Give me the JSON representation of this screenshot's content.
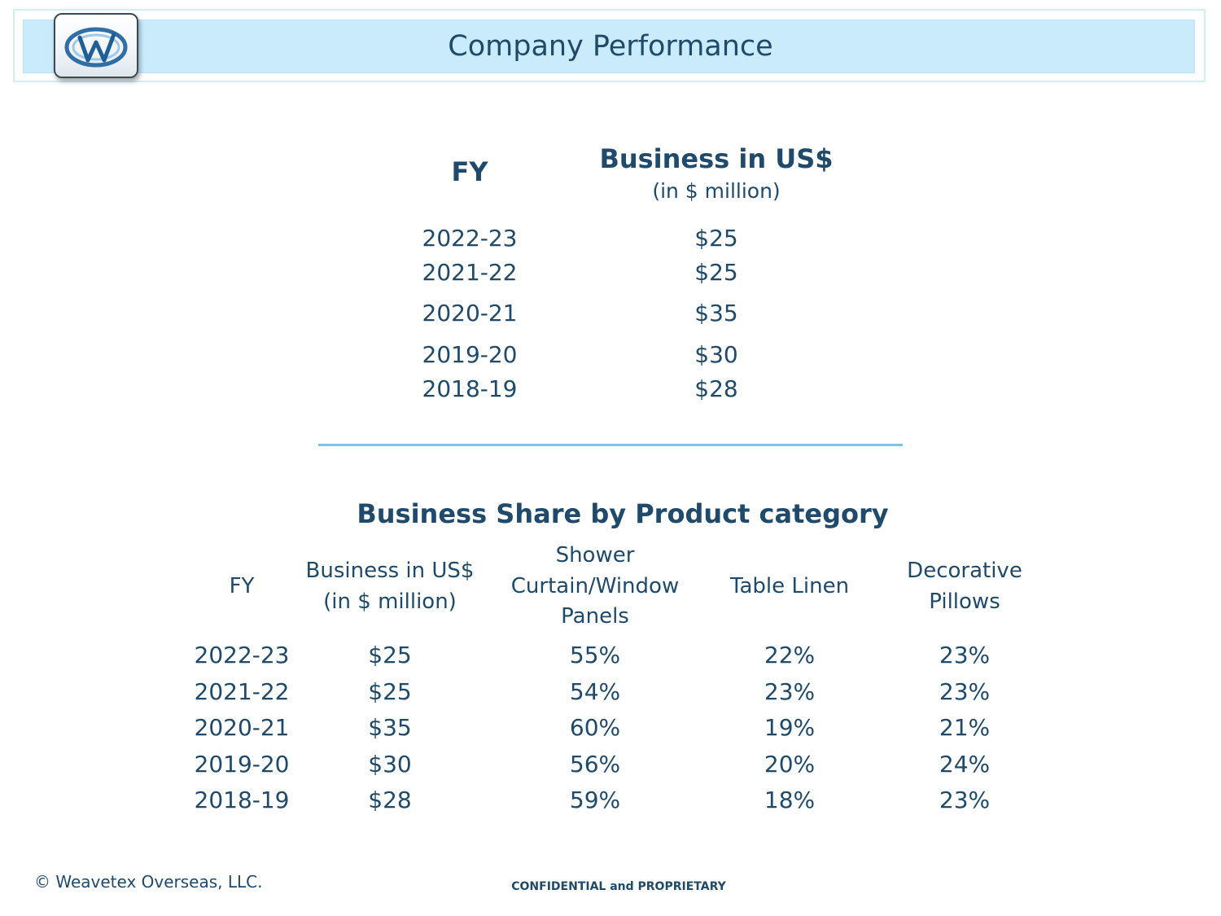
{
  "header": {
    "title": "Company Performance",
    "logo_icon": "weavetex-w-logo-icon"
  },
  "summary_table": {
    "fy_header": "FY",
    "business_header": "Business in US$",
    "business_subheader": "(in $ million)",
    "rows": [
      {
        "fy": "2022-23",
        "value": "$25"
      },
      {
        "fy": "2021-22",
        "value": "$25"
      },
      {
        "fy": "2020-21",
        "value": "$35"
      },
      {
        "fy": "2019-20",
        "value": "$30"
      },
      {
        "fy": "2018-19",
        "value": "$28"
      }
    ]
  },
  "category_table": {
    "title": "Business Share by Product category",
    "headers": {
      "fy": "FY",
      "business_line1": "Business in US$",
      "business_line2": "(in $ million)",
      "shower_line1": "Shower",
      "shower_line2": "Curtain/Window",
      "shower_line3": "Panels",
      "table_linen": "Table Linen",
      "pillows_line1": "Decorative",
      "pillows_line2": "Pillows"
    },
    "rows": [
      {
        "fy": "2022-23",
        "business": "$25",
        "shower": "55%",
        "linen": "22%",
        "pillows": "23%"
      },
      {
        "fy": "2021-22",
        "business": "$25",
        "shower": "54%",
        "linen": "23%",
        "pillows": "23%"
      },
      {
        "fy": "2020-21",
        "business": "$35",
        "shower": "60%",
        "linen": "19%",
        "pillows": "21%"
      },
      {
        "fy": "2019-20",
        "business": "$30",
        "shower": "56%",
        "linen": "20%",
        "pillows": "24%"
      },
      {
        "fy": "2018-19",
        "business": "$28",
        "shower": "59%",
        "linen": "18%",
        "pillows": "23%"
      }
    ]
  },
  "footer": {
    "copyright": "© Weavetex Overseas, LLC.",
    "confidential": "CONFIDENTIAL and PROPRIETARY"
  },
  "colors": {
    "text": "#1f4a6b",
    "banner": "#c9ebfb",
    "divider": "#7fc3e8"
  }
}
